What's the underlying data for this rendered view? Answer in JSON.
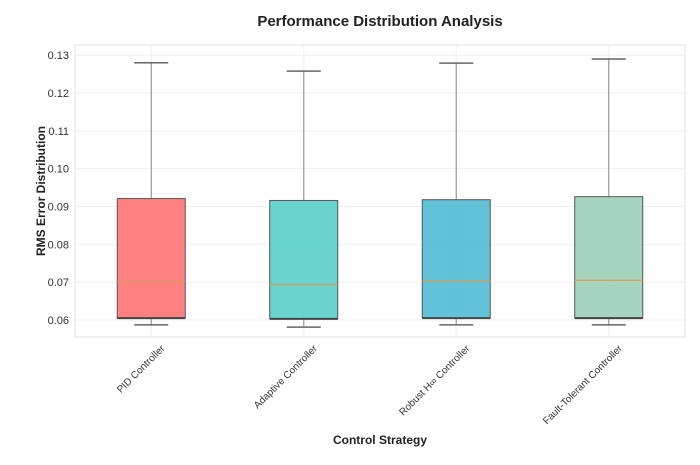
{
  "chart_data": {
    "type": "box",
    "title": "Performance Distribution Analysis",
    "xlabel": "Control Strategy",
    "ylabel": "RMS Error Distribution",
    "ylim": [
      0.0555,
      0.1327
    ],
    "yticks": [
      0.06,
      0.07,
      0.08,
      0.09,
      0.1,
      0.11,
      0.12,
      0.13
    ],
    "ytick_labels": [
      "0.06",
      "0.07",
      "0.08",
      "0.09",
      "0.10",
      "0.11",
      "0.12",
      "0.13"
    ],
    "grid": true,
    "categories": [
      "PID Controller",
      "Adaptive Controller",
      "Robust H∞ Controller",
      "Fault-Tolerant Controller"
    ],
    "boxes": [
      {
        "whislo": 0.0587,
        "q1": 0.0605,
        "med": 0.0702,
        "q3": 0.0921,
        "whishi": 0.128,
        "color": "#FF6B6B"
      },
      {
        "whislo": 0.0581,
        "q1": 0.0603,
        "med": 0.0694,
        "q3": 0.0916,
        "whishi": 0.1258,
        "color": "#4ECDC4"
      },
      {
        "whislo": 0.0587,
        "q1": 0.0605,
        "med": 0.0702,
        "q3": 0.0918,
        "whishi": 0.1279,
        "color": "#45B7D1"
      },
      {
        "whislo": 0.0587,
        "q1": 0.0605,
        "med": 0.0705,
        "q3": 0.0926,
        "whishi": 0.129,
        "color": "#96CEB4"
      }
    ]
  }
}
